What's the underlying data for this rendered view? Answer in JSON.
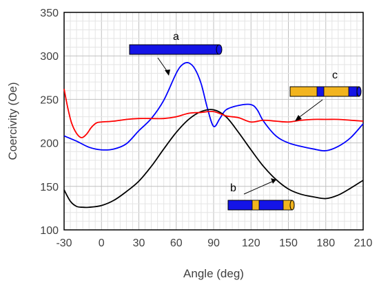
{
  "chart_data": {
    "type": "line",
    "xlabel": "Angle (deg)",
    "ylabel": "Coercivity (Oe)",
    "xlim": [
      -30,
      210
    ],
    "ylim": [
      100,
      350
    ],
    "x_ticks": [
      "-30",
      "0",
      "30",
      "60",
      "90",
      "120",
      "150",
      "180",
      "210"
    ],
    "y_ticks": [
      "100",
      "150",
      "200",
      "250",
      "300",
      "350"
    ],
    "grid": true,
    "series": [
      {
        "color": "#0000ff",
        "x": [
          -30,
          -20,
          -10,
          0,
          10,
          20,
          30,
          40,
          50,
          60,
          65,
          70,
          75,
          80,
          85,
          90,
          95,
          100,
          110,
          120,
          125,
          130,
          140,
          150,
          160,
          170,
          180,
          190,
          200,
          210
        ],
        "y": [
          208,
          202,
          195,
          192,
          193,
          199,
          214,
          228,
          249,
          280,
          290,
          292,
          285,
          268,
          240,
          219,
          228,
          238,
          243,
          244,
          238,
          225,
          208,
          200,
          196,
          193,
          191,
          196,
          206,
          222
        ]
      },
      {
        "color": "#000000",
        "x": [
          -30,
          -25,
          -20,
          -15,
          -10,
          0,
          10,
          20,
          30,
          40,
          50,
          60,
          70,
          80,
          90,
          100,
          110,
          120,
          130,
          140,
          150,
          160,
          170,
          180,
          190,
          200,
          210
        ],
        "y": [
          146,
          133,
          127,
          126,
          126,
          128,
          134,
          144,
          156,
          173,
          193,
          212,
          227,
          236,
          238,
          230,
          212,
          192,
          173,
          158,
          147,
          141,
          138,
          136,
          140,
          148,
          157
        ]
      },
      {
        "color": "#ff0000",
        "x": [
          -30,
          -27,
          -24,
          -20,
          -16,
          -12,
          -8,
          -4,
          0,
          10,
          20,
          30,
          40,
          50,
          60,
          70,
          80,
          90,
          100,
          110,
          120,
          130,
          140,
          150,
          160,
          170,
          180,
          190,
          200,
          210
        ],
        "y": [
          262,
          240,
          223,
          211,
          206,
          210,
          218,
          223,
          224,
          225,
          227,
          228,
          228,
          228,
          230,
          234,
          235,
          236,
          231,
          229,
          224,
          226,
          225,
          224,
          226,
          227,
          227,
          227,
          226,
          225
        ]
      }
    ],
    "annotations": [
      {
        "label": "a",
        "bar": "blue"
      },
      {
        "label": "b",
        "bar": "blue-orange-ends"
      },
      {
        "label": "c",
        "bar": "orange-blue-ends"
      }
    ]
  }
}
